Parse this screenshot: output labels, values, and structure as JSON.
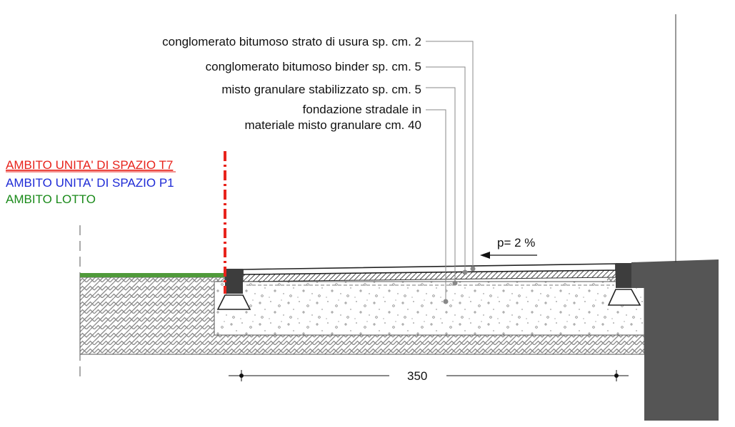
{
  "callouts": [
    {
      "text": "conglomerato bitumoso strato di usura sp. cm. 2"
    },
    {
      "text": "conglomerato bitumoso binder sp. cm. 5"
    },
    {
      "text": "misto granulare stabilizzato sp. cm. 5"
    },
    {
      "text_line1": "fondazione stradale in",
      "text_line2": "materiale misto granulare cm. 40"
    }
  ],
  "legend": {
    "t7": {
      "text": "AMBITO UNITA' DI SPAZIO T7",
      "color": "#e8231c"
    },
    "p1": {
      "text": "AMBITO UNITA' DI SPAZIO P1",
      "color": "#1f2bd6"
    },
    "lotto": {
      "text": "AMBITO LOTTO",
      "color": "#1a8a1a"
    }
  },
  "slope": {
    "text": "p= 2 %"
  },
  "dimension": {
    "text": "350"
  },
  "colors": {
    "grass": "#4f9a3a",
    "wall": "#555555",
    "boundary": "#e8231c",
    "ink": "#111111"
  }
}
